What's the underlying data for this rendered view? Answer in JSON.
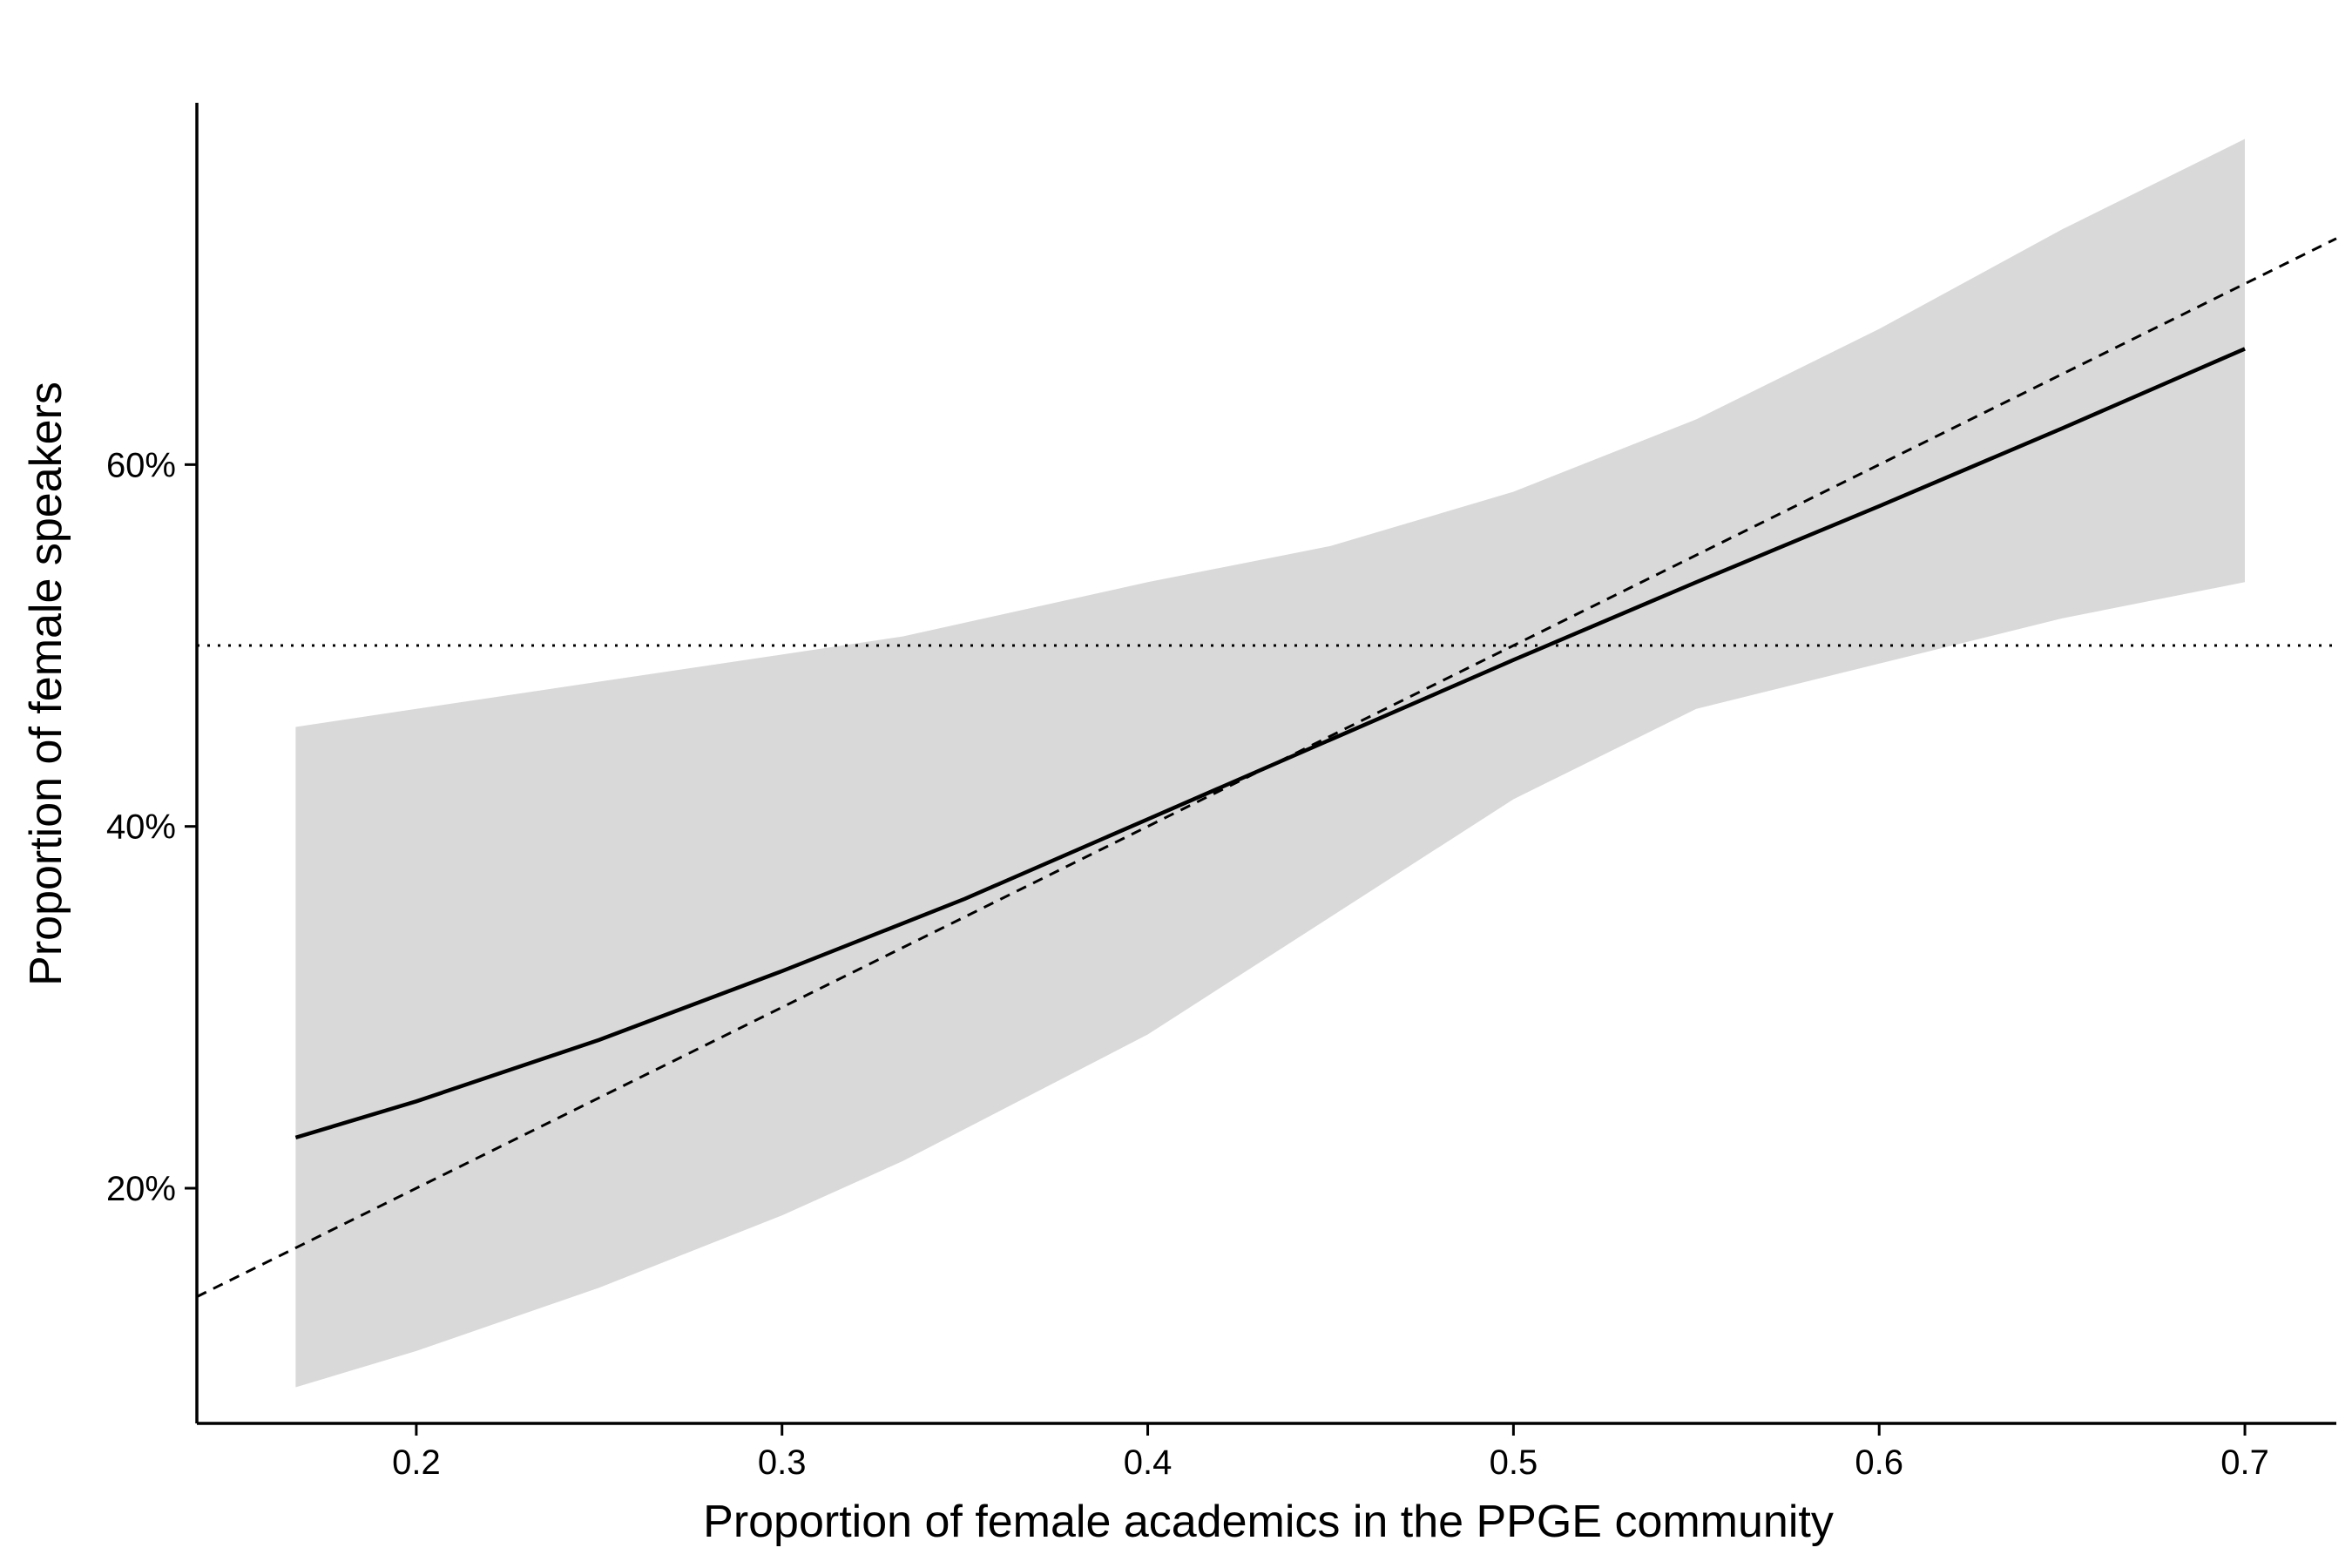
{
  "chart_data": {
    "type": "line",
    "title": "",
    "xlabel": "Proportion of female academics in the PPGE community",
    "ylabel": "Proportion of female speakers",
    "xlim": [
      0.14,
      0.725
    ],
    "ylim": [
      0.07,
      0.8
    ],
    "x_ticks": [
      0.2,
      0.3,
      0.4,
      0.5,
      0.6,
      0.7
    ],
    "x_tick_labels": [
      "0.2",
      "0.3",
      "0.4",
      "0.5",
      "0.6",
      "0.7"
    ],
    "y_ticks": [
      0.2,
      0.4,
      0.6
    ],
    "y_tick_labels": [
      "20%",
      "40%",
      "60%"
    ],
    "grid": false,
    "legend": "none",
    "series": [
      {
        "kind": "confidence_band",
        "color": "#d9d9d9",
        "x": [
          0.167,
          0.2,
          0.25,
          0.3,
          0.333,
          0.4,
          0.45,
          0.5,
          0.55,
          0.6,
          0.65,
          0.7
        ],
        "lower": [
          0.09,
          0.11,
          0.145,
          0.185,
          0.215,
          0.285,
          0.35,
          0.415,
          0.465,
          0.49,
          0.515,
          0.535
        ],
        "upper": [
          0.455,
          0.465,
          0.48,
          0.495,
          0.505,
          0.535,
          0.555,
          0.585,
          0.625,
          0.675,
          0.73,
          0.78
        ]
      },
      {
        "kind": "fitted_line",
        "style": "solid",
        "color": "#000000",
        "x": [
          0.167,
          0.2,
          0.25,
          0.3,
          0.35,
          0.4,
          0.45,
          0.5,
          0.55,
          0.6,
          0.65,
          0.7
        ],
        "y": [
          0.228,
          0.248,
          0.282,
          0.32,
          0.36,
          0.404,
          0.448,
          0.492,
          0.535,
          0.577,
          0.62,
          0.664
        ]
      },
      {
        "kind": "identity_line",
        "style": "dashed",
        "color": "#000000",
        "x": [
          0.14,
          0.725
        ],
        "y": [
          0.14,
          0.725
        ]
      },
      {
        "kind": "reference_line",
        "style": "dotted",
        "color": "#000000",
        "x": [
          0.14,
          0.725
        ],
        "y": [
          0.5,
          0.5
        ]
      }
    ]
  }
}
